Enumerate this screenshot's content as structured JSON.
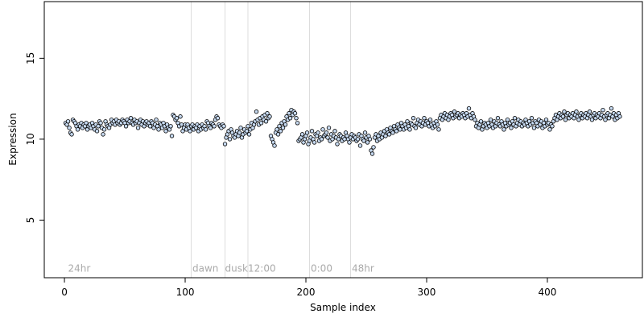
{
  "chart_data": {
    "type": "scatter",
    "xlabel": "Sample index",
    "ylabel": "Expression",
    "xlim": [
      -16.7,
      478.7
    ],
    "ylim": [
      1.44,
      18.5
    ],
    "xticks": [
      0,
      100,
      200,
      300,
      400
    ],
    "yticks": [
      5,
      10,
      15
    ],
    "color": "#c6d9f0",
    "edgecolor": "#000000",
    "vlines": [
      105,
      133,
      152,
      203,
      237
    ],
    "annotations": [
      {
        "x": 3,
        "y": 2,
        "label": "24hr"
      },
      {
        "x": 106,
        "y": 2,
        "label": "dawn"
      },
      {
        "x": 133,
        "y": 2,
        "label": "dusk"
      },
      {
        "x": 152,
        "y": 2,
        "label": "12:00"
      },
      {
        "x": 204,
        "y": 2,
        "label": "0:00"
      },
      {
        "x": 238,
        "y": 2,
        "label": "48hr"
      }
    ],
    "values": [
      11.0,
      10.9,
      11.1,
      10.7,
      10.4,
      10.3,
      11.2,
      11.1,
      11.0,
      10.8,
      10.6,
      10.9,
      10.8,
      11.0,
      10.7,
      10.9,
      10.8,
      11.0,
      10.6,
      10.8,
      10.9,
      10.7,
      11.0,
      10.8,
      10.6,
      10.9,
      10.5,
      10.8,
      11.1,
      11.0,
      10.7,
      10.3,
      10.6,
      11.1,
      10.9,
      10.8,
      10.7,
      10.9,
      11.2,
      11.0,
      11.1,
      10.9,
      11.2,
      11.0,
      11.1,
      10.9,
      11.0,
      11.2,
      11.1,
      11.0,
      10.8,
      11.2,
      11.0,
      11.1,
      11.3,
      11.0,
      10.9,
      11.2,
      11.0,
      11.1,
      10.7,
      11.0,
      11.2,
      10.9,
      11.1,
      10.8,
      11.0,
      11.1,
      10.9,
      11.0,
      10.8,
      11.1,
      11.0,
      10.7,
      10.9,
      11.2,
      10.8,
      10.6,
      11.0,
      10.9,
      10.7,
      11.0,
      10.8,
      10.5,
      10.9,
      10.7,
      10.6,
      10.8,
      10.2,
      11.5,
      11.4,
      11.2,
      11.3,
      11.0,
      10.8,
      11.4,
      10.9,
      10.5,
      10.7,
      10.9,
      10.6,
      10.9,
      10.7,
      10.5,
      10.8,
      10.9,
      10.6,
      10.8,
      10.7,
      10.9,
      10.5,
      10.8,
      10.6,
      10.9,
      10.7,
      10.8,
      10.6,
      11.1,
      11.0,
      10.8,
      10.7,
      11.0,
      10.9,
      10.8,
      11.2,
      11.4,
      11.3,
      10.9,
      10.8,
      10.7,
      10.9,
      10.8,
      9.7,
      10.1,
      10.3,
      10.5,
      10.0,
      10.6,
      10.4,
      10.2,
      10.1,
      10.3,
      10.5,
      10.2,
      10.4,
      10.7,
      10.1,
      10.3,
      10.6,
      10.4,
      10.5,
      10.8,
      10.3,
      10.6,
      11.0,
      10.7,
      10.9,
      11.1,
      11.7,
      11.2,
      10.9,
      11.3,
      11.0,
      11.4,
      11.2,
      11.5,
      11.1,
      11.6,
      11.3,
      11.4,
      10.2,
      10.0,
      9.8,
      9.6,
      10.4,
      10.6,
      10.3,
      10.8,
      10.5,
      11.0,
      10.7,
      11.1,
      10.9,
      11.4,
      11.2,
      11.6,
      11.3,
      11.8,
      11.5,
      11.7,
      11.6,
      11.3,
      11.0,
      9.9,
      10.0,
      10.1,
      10.3,
      9.8,
      10.0,
      10.2,
      10.4,
      9.7,
      9.9,
      10.1,
      10.5,
      10.0,
      9.8,
      10.3,
      10.2,
      10.4,
      9.9,
      10.1,
      10.0,
      10.6,
      10.2,
      10.3,
      10.4,
      10.1,
      10.7,
      9.9,
      10.3,
      10.0,
      10.2,
      10.5,
      10.1,
      9.7,
      10.0,
      10.3,
      10.2,
      9.9,
      10.1,
      10.0,
      10.4,
      10.2,
      10.0,
      9.8,
      10.1,
      10.3,
      10.0,
      10.2,
      10.1,
      9.9,
      10.0,
      10.3,
      9.6,
      10.2,
      10.0,
      9.9,
      10.4,
      10.1,
      9.8,
      10.2,
      10.0,
      9.3,
      9.1,
      9.5,
      10.1,
      10.3,
      9.9,
      10.2,
      10.0,
      10.4,
      10.1,
      10.3,
      10.5,
      10.2,
      10.6,
      10.4,
      10.3,
      10.7,
      10.5,
      10.4,
      10.8,
      10.6,
      10.5,
      10.9,
      10.7,
      10.6,
      11.0,
      10.8,
      10.6,
      10.9,
      10.7,
      11.1,
      10.8,
      10.6,
      11.0,
      10.9,
      11.3,
      10.8,
      10.7,
      11.0,
      11.2,
      10.9,
      11.1,
      10.8,
      11.0,
      11.3,
      10.9,
      11.1,
      11.0,
      10.8,
      11.2,
      10.9,
      10.7,
      11.0,
      10.8,
      11.1,
      10.9,
      10.6,
      11.3,
      11.5,
      11.2,
      11.4,
      11.6,
      11.3,
      11.5,
      11.2,
      11.4,
      11.6,
      11.5,
      11.3,
      11.7,
      11.4,
      11.5,
      11.6,
      11.3,
      11.5,
      11.4,
      11.6,
      11.5,
      11.3,
      11.6,
      11.4,
      11.9,
      11.5,
      11.3,
      11.6,
      11.4,
      11.2,
      10.8,
      11.0,
      10.7,
      10.9,
      11.1,
      10.6,
      10.8,
      11.0,
      10.9,
      10.7,
      11.0,
      10.8,
      11.2,
      10.9,
      10.7,
      11.1,
      10.8,
      11.0,
      11.3,
      10.9,
      10.8,
      11.1,
      10.9,
      10.6,
      11.0,
      10.8,
      11.2,
      10.9,
      11.0,
      10.7,
      11.1,
      10.9,
      11.3,
      10.8,
      11.0,
      11.2,
      10.9,
      11.1,
      10.8,
      11.0,
      10.9,
      11.2,
      11.0,
      10.8,
      11.1,
      10.9,
      11.3,
      11.0,
      10.7,
      11.1,
      11.0,
      10.8,
      11.2,
      10.9,
      11.1,
      10.7,
      11.0,
      10.8,
      11.2,
      10.9,
      11.0,
      10.6,
      10.9,
      10.8,
      11.1,
      11.3,
      11.5,
      11.2,
      11.4,
      11.6,
      11.3,
      11.5,
      11.4,
      11.7,
      11.2,
      11.5,
      11.6,
      11.3,
      11.5,
      11.4,
      11.6,
      11.3,
      11.5,
      11.7,
      11.4,
      11.2,
      11.5,
      11.6,
      11.3,
      11.5,
      11.4,
      11.6,
      11.3,
      11.5,
      11.7,
      11.4,
      11.2,
      11.5,
      11.6,
      11.3,
      11.5,
      11.4,
      11.6,
      11.3,
      11.5,
      11.8,
      11.4,
      11.2,
      11.5,
      11.6,
      11.3,
      11.5,
      11.9,
      11.4,
      11.6,
      11.2,
      11.5,
      11.3,
      11.6,
      11.4
    ]
  }
}
